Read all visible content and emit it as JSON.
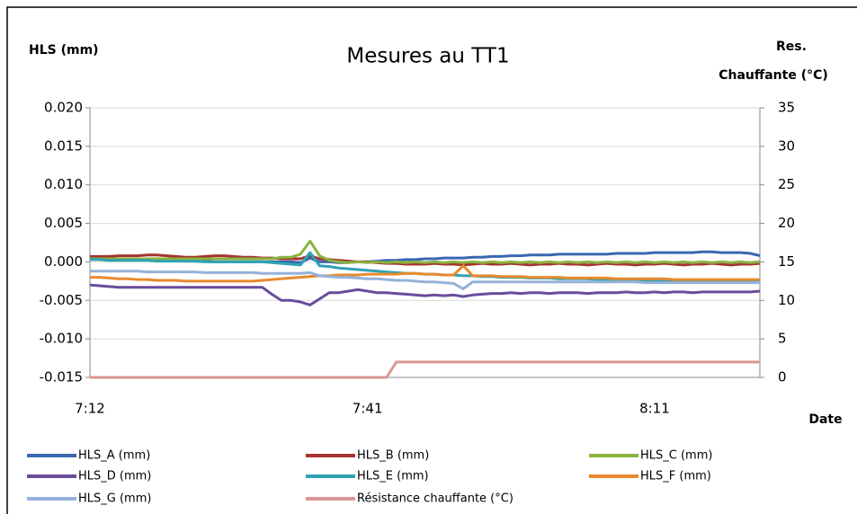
{
  "chart_data": {
    "type": "line",
    "title": "Mesures au TT1",
    "ylabel": "HLS (mm)",
    "y2label": [
      "Res.",
      "Chauffante  (°C)"
    ],
    "xlabel": "Date",
    "categories": [
      "7:12",
      null,
      null,
      null,
      null,
      null,
      null,
      null,
      null,
      null,
      null,
      null,
      null,
      null,
      null,
      null,
      null,
      null,
      null,
      null,
      null,
      null,
      null,
      null,
      null,
      null,
      null,
      null,
      null,
      "7:41",
      null,
      null,
      null,
      null,
      null,
      null,
      null,
      null,
      null,
      null,
      null,
      null,
      null,
      null,
      null,
      null,
      null,
      null,
      null,
      null,
      null,
      null,
      null,
      null,
      null,
      null,
      null,
      null,
      null,
      "8:11",
      null,
      null,
      null,
      null,
      null,
      null,
      null,
      null,
      null,
      null,
      null
    ],
    "ylim": [
      -0.015,
      0.02
    ],
    "yticks": [
      {
        "value": -0.015,
        "label": "-0.015"
      },
      {
        "value": -0.01,
        "label": "-0.010"
      },
      {
        "value": -0.005,
        "label": "-0.005"
      },
      {
        "value": 0,
        "label": "0.000"
      },
      {
        "value": 0.005,
        "label": "0.005"
      },
      {
        "value": 0.01,
        "label": "0.010"
      },
      {
        "value": 0.015,
        "label": "0.015"
      },
      {
        "value": 0.02,
        "label": "0.020"
      }
    ],
    "y2lim": [
      0,
      35
    ],
    "y2ticks": [
      0,
      5,
      10,
      15,
      20,
      25,
      30,
      35
    ],
    "grid": true,
    "legend": "bottom",
    "series": [
      {
        "name": "HLS_A (mm)",
        "color": "#3a67b0",
        "values": [
          0.0005,
          0.0005,
          0.0004,
          0.0004,
          0.0003,
          0.0003,
          0.0003,
          0.0002,
          0.0002,
          0.0002,
          0.0001,
          0.0001,
          0.0001,
          0,
          0,
          0,
          0,
          0,
          0,
          0,
          0,
          0,
          -0.0001,
          0.0005,
          0,
          0,
          -0.0001,
          -0.0001,
          0,
          0,
          0.0001,
          0.0002,
          0.0002,
          0.0003,
          0.0003,
          0.0004,
          0.0004,
          0.0005,
          0.0005,
          0.0005,
          0.0006,
          0.0006,
          0.0007,
          0.0007,
          0.0008,
          0.0008,
          0.0009,
          0.0009,
          0.0009,
          0.001,
          0.001,
          0.001,
          0.001,
          0.001,
          0.001,
          0.0011,
          0.0011,
          0.0011,
          0.0011,
          0.0012,
          0.0012,
          0.0012,
          0.0012,
          0.0012,
          0.0013,
          0.0013,
          0.0012,
          0.0012,
          0.0012,
          0.0011,
          0.0008
        ]
      },
      {
        "name": "HLS_B (mm)",
        "color": "#a5342f",
        "values": [
          0.0007,
          0.0007,
          0.0007,
          0.0008,
          0.0008,
          0.0008,
          0.0009,
          0.0009,
          0.0008,
          0.0007,
          0.0006,
          0.0006,
          0.0007,
          0.0008,
          0.0008,
          0.0007,
          0.0006,
          0.0006,
          0.0005,
          0.0005,
          0.0004,
          0.0004,
          0.0004,
          0.0008,
          0.0004,
          0.0003,
          0.0002,
          0.0001,
          0,
          0,
          -0.0001,
          -0.0002,
          -0.0002,
          -0.0003,
          -0.0003,
          -0.0003,
          -0.0002,
          -0.0003,
          -0.0003,
          -0.0004,
          -0.0003,
          -0.0002,
          -0.0003,
          -0.0003,
          -0.0002,
          -0.0003,
          -0.0004,
          -0.0003,
          -0.0003,
          -0.0002,
          -0.0003,
          -0.0003,
          -0.0004,
          -0.0003,
          -0.0002,
          -0.0003,
          -0.0003,
          -0.0004,
          -0.0003,
          -0.0003,
          -0.0002,
          -0.0003,
          -0.0004,
          -0.0003,
          -0.0003,
          -0.0002,
          -0.0003,
          -0.0004,
          -0.0003,
          -0.0003,
          -0.0002
        ]
      },
      {
        "name": "HLS_C (mm)",
        "color": "#8ab33f",
        "values": [
          0.0004,
          0.0004,
          0.0004,
          0.0004,
          0.0004,
          0.0004,
          0.0004,
          0.0004,
          0.0004,
          0.0004,
          0.0004,
          0.0004,
          0.0004,
          0.0004,
          0.0004,
          0.0004,
          0.0004,
          0.0004,
          0.0004,
          0.0004,
          0.0006,
          0.0006,
          0.001,
          0.0027,
          0.0008,
          0.0002,
          0,
          -0.0001,
          0,
          -0.0001,
          0,
          -0.0001,
          0,
          -0.0001,
          0,
          -0.0001,
          0,
          -0.0001,
          0,
          -0.0001,
          0,
          -0.0001,
          0,
          -0.0001,
          0,
          -0.0001,
          0,
          -0.0001,
          0,
          -0.0001,
          0,
          -0.0001,
          0,
          -0.0001,
          0,
          -0.0001,
          0,
          -0.0001,
          0,
          -0.0001,
          0,
          -0.0001,
          0,
          -0.0001,
          0,
          -0.0001,
          0,
          -0.0001,
          0,
          -0.0001,
          0
        ]
      },
      {
        "name": "HLS_D (mm)",
        "color": "#6a4c9c",
        "values": [
          -0.003,
          -0.0031,
          -0.0032,
          -0.0033,
          -0.0033,
          -0.0033,
          -0.0033,
          -0.0033,
          -0.0033,
          -0.0033,
          -0.0033,
          -0.0033,
          -0.0033,
          -0.0033,
          -0.0033,
          -0.0033,
          -0.0033,
          -0.0033,
          -0.0033,
          -0.0042,
          -0.005,
          -0.005,
          -0.0052,
          -0.0056,
          -0.0048,
          -0.004,
          -0.004,
          -0.0038,
          -0.0036,
          -0.0038,
          -0.004,
          -0.004,
          -0.0041,
          -0.0042,
          -0.0043,
          -0.0044,
          -0.0043,
          -0.0044,
          -0.0043,
          -0.0045,
          -0.0043,
          -0.0042,
          -0.0041,
          -0.0041,
          -0.004,
          -0.0041,
          -0.004,
          -0.004,
          -0.0041,
          -0.004,
          -0.004,
          -0.004,
          -0.0041,
          -0.004,
          -0.004,
          -0.004,
          -0.0039,
          -0.004,
          -0.004,
          -0.0039,
          -0.004,
          -0.0039,
          -0.0039,
          -0.004,
          -0.0039,
          -0.0039,
          -0.0039,
          -0.0039,
          -0.0039,
          -0.0039,
          -0.0038
        ]
      },
      {
        "name": "HLS_E (mm)",
        "color": "#2fa3b4",
        "values": [
          0.0003,
          0.0003,
          0.0002,
          0.0002,
          0.0002,
          0.0002,
          0.0002,
          0.0001,
          0.0001,
          0.0001,
          0.0001,
          0.0001,
          0,
          0,
          0,
          0,
          0,
          0,
          0,
          -0.0001,
          -0.0002,
          -0.0003,
          -0.0004,
          0.0012,
          -0.0005,
          -0.0006,
          -0.0008,
          -0.0009,
          -0.001,
          -0.0011,
          -0.0012,
          -0.0013,
          -0.0014,
          -0.0015,
          -0.0015,
          -0.0016,
          -0.0016,
          -0.0017,
          -0.0017,
          -0.0018,
          -0.0018,
          -0.0019,
          -0.0019,
          -0.002,
          -0.002,
          -0.002,
          -0.0021,
          -0.0021,
          -0.0021,
          -0.0022,
          -0.0022,
          -0.0022,
          -0.0022,
          -0.0023,
          -0.0023,
          -0.0023,
          -0.0023,
          -0.0023,
          -0.0024,
          -0.0024,
          -0.0024,
          -0.0024,
          -0.0024,
          -0.0024,
          -0.0025,
          -0.0025,
          -0.0025,
          -0.0025,
          -0.0025,
          -0.0025,
          -0.0025
        ]
      },
      {
        "name": "HLS_F (mm)",
        "color": "#e88a2e",
        "values": [
          -0.002,
          -0.002,
          -0.0021,
          -0.0022,
          -0.0022,
          -0.0023,
          -0.0023,
          -0.0024,
          -0.0024,
          -0.0024,
          -0.0025,
          -0.0025,
          -0.0025,
          -0.0025,
          -0.0025,
          -0.0025,
          -0.0025,
          -0.0025,
          -0.0024,
          -0.0023,
          -0.0022,
          -0.0021,
          -0.002,
          -0.0019,
          -0.0018,
          -0.0018,
          -0.0017,
          -0.0017,
          -0.0017,
          -0.0016,
          -0.0016,
          -0.0016,
          -0.0016,
          -0.0015,
          -0.0015,
          -0.0016,
          -0.0016,
          -0.0017,
          -0.0017,
          -0.0005,
          -0.0018,
          -0.0018,
          -0.0018,
          -0.0019,
          -0.0019,
          -0.0019,
          -0.002,
          -0.002,
          -0.002,
          -0.002,
          -0.0021,
          -0.0021,
          -0.0021,
          -0.0021,
          -0.0021,
          -0.0022,
          -0.0022,
          -0.0022,
          -0.0022,
          -0.0022,
          -0.0022,
          -0.0023,
          -0.0023,
          -0.0023,
          -0.0023,
          -0.0023,
          -0.0023,
          -0.0023,
          -0.0023,
          -0.0023,
          -0.0023
        ]
      },
      {
        "name": "HLS_G (mm)",
        "color": "#95b2d9",
        "values": [
          -0.0012,
          -0.0012,
          -0.0012,
          -0.0012,
          -0.0012,
          -0.0012,
          -0.0013,
          -0.0013,
          -0.0013,
          -0.0013,
          -0.0013,
          -0.0013,
          -0.0014,
          -0.0014,
          -0.0014,
          -0.0014,
          -0.0014,
          -0.0014,
          -0.0015,
          -0.0015,
          -0.0015,
          -0.0015,
          -0.0015,
          -0.0014,
          -0.0018,
          -0.0019,
          -0.002,
          -0.002,
          -0.0021,
          -0.0022,
          -0.0022,
          -0.0023,
          -0.0024,
          -0.0024,
          -0.0025,
          -0.0026,
          -0.0026,
          -0.0027,
          -0.0028,
          -0.0035,
          -0.0026,
          -0.0026,
          -0.0026,
          -0.0026,
          -0.0026,
          -0.0026,
          -0.0026,
          -0.0026,
          -0.0026,
          -0.0026,
          -0.0026,
          -0.0026,
          -0.0026,
          -0.0026,
          -0.0026,
          -0.0026,
          -0.0026,
          -0.0026,
          -0.0027,
          -0.0027,
          -0.0027,
          -0.0027,
          -0.0027,
          -0.0027,
          -0.0027,
          -0.0027,
          -0.0027,
          -0.0027,
          -0.0027,
          -0.0027,
          -0.0027
        ]
      },
      {
        "name": "Résistance chauffante (°C)",
        "color": "#d99694",
        "axis": "y2",
        "values": [
          0,
          0,
          0,
          0,
          0,
          0,
          0,
          0,
          0,
          0,
          0,
          0,
          0,
          0,
          0,
          0,
          0,
          0,
          0,
          0,
          0,
          0,
          0,
          0,
          0,
          0,
          0,
          0,
          0,
          0,
          0,
          0,
          2,
          2,
          2,
          2,
          2,
          2,
          2,
          2,
          2,
          2,
          2,
          2,
          2,
          2,
          2,
          2,
          2,
          2,
          2,
          2,
          2,
          2,
          2,
          2,
          2,
          2,
          2,
          2,
          2,
          2,
          2,
          2,
          2,
          2,
          2,
          2,
          2,
          2,
          2
        ]
      }
    ]
  }
}
